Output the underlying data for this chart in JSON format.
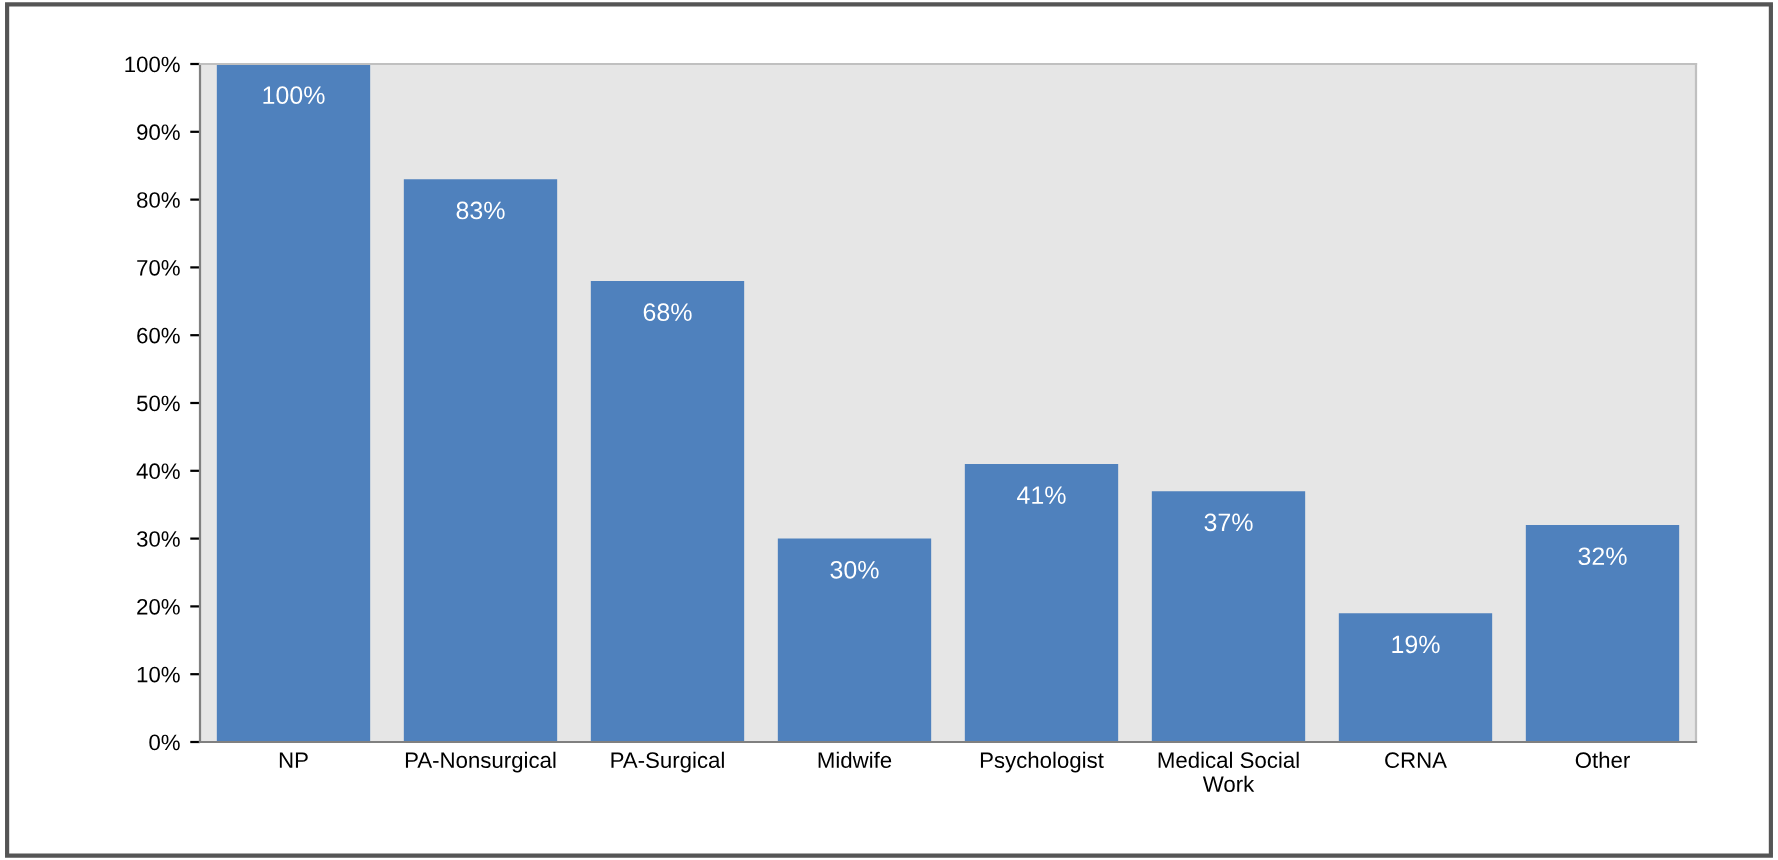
{
  "chart_data": {
    "type": "bar",
    "categories": [
      "NP",
      "PA-Nonsurgical",
      "PA-Surgical",
      "Midwife",
      "Psychologist",
      "Medical Social\nWork",
      "CRNA",
      "Other"
    ],
    "values": [
      100,
      83,
      68,
      30,
      41,
      37,
      19,
      32
    ],
    "value_labels": [
      "100%",
      "83%",
      "68%",
      "30%",
      "41%",
      "37%",
      "19%",
      "32%"
    ],
    "color": "#4f81bd",
    "ylim": [
      0,
      100
    ],
    "yticks": [
      {
        "value": 0,
        "label": "0%"
      },
      {
        "value": 10,
        "label": "10%"
      },
      {
        "value": 20,
        "label": "20%"
      },
      {
        "value": 30,
        "label": "30%"
      },
      {
        "value": 40,
        "label": "40%"
      },
      {
        "value": 50,
        "label": "50%"
      },
      {
        "value": 60,
        "label": "60%"
      },
      {
        "value": 70,
        "label": "70%"
      },
      {
        "value": 80,
        "label": "80%"
      },
      {
        "value": 90,
        "label": "90%"
      },
      {
        "value": 100,
        "label": "100%"
      }
    ],
    "grid": false,
    "legend": false
  }
}
